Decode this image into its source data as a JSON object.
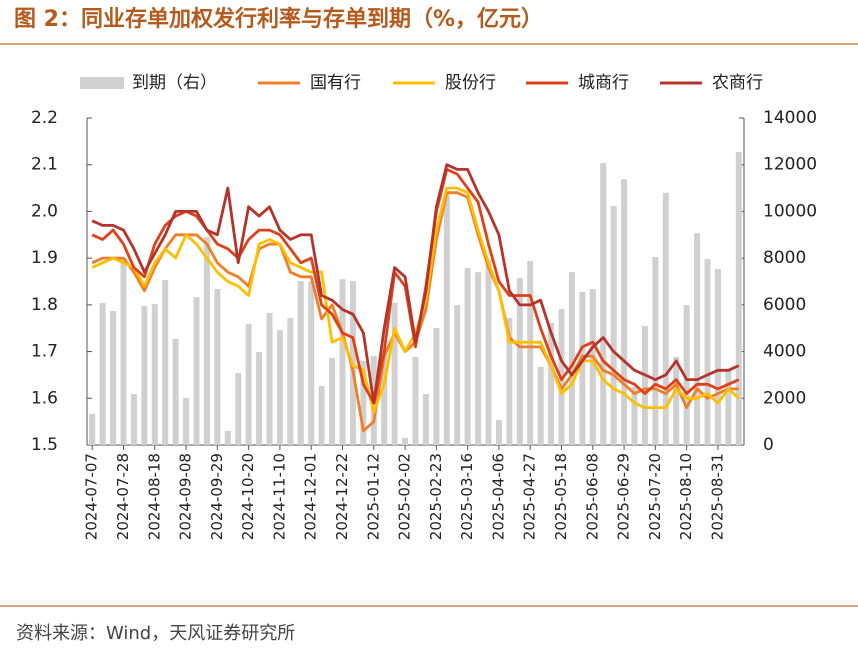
{
  "chart_data": {
    "type": "combo",
    "title": "图 2：同业存单加权发行利率与存单到期（%，亿元）",
    "source": "资料来源：Wind，天风证券研究所",
    "legend": "top",
    "categories": [
      "2024-07-07",
      null,
      null,
      "2024-07-28",
      null,
      null,
      "2024-08-18",
      null,
      null,
      "2024-09-08",
      null,
      null,
      "2024-09-29",
      null,
      null,
      "2024-10-20",
      null,
      null,
      "2024-11-10",
      null,
      null,
      "2024-12-01",
      null,
      null,
      "2024-12-22",
      null,
      null,
      "2025-01-12",
      null,
      null,
      "2025-02-02",
      null,
      null,
      "2025-02-23",
      null,
      null,
      "2025-03-16",
      null,
      null,
      "2025-04-06",
      null,
      null,
      "2025-04-27",
      null,
      null,
      "2025-05-18",
      null,
      null,
      "2025-06-08",
      null,
      null,
      "2025-06-29",
      null,
      null,
      "2025-07-20",
      null,
      null,
      "2025-08-10",
      null,
      null,
      "2025-08-31",
      null,
      null
    ],
    "ylim": [
      1.5,
      2.2
    ],
    "yticks": [
      1.5,
      1.6,
      1.7,
      1.8,
      1.9,
      {
        "value": 2.0,
        "label": "2.0"
      },
      2.1,
      2.2
    ],
    "y2lim": [
      0,
      14000
    ],
    "y2ticks": [
      0,
      2000,
      4000,
      6000,
      8000,
      10000,
      12000,
      14000
    ],
    "series": [
      {
        "name": "到期（右）",
        "type": "bar",
        "axis": "y2",
        "color": "#d0d0d0",
        "values": [
          1330,
          6080,
          5740,
          8000,
          2180,
          5950,
          6030,
          7060,
          4540,
          2010,
          6330,
          8900,
          6680,
          600,
          3080,
          5180,
          3980,
          5650,
          4920,
          5440,
          7020,
          7000,
          2530,
          3720,
          7100,
          7020,
          3600,
          3810,
          4020,
          6080,
          300,
          3770,
          2180,
          5010,
          10800,
          5990,
          7580,
          7400,
          7920,
          1070,
          5440,
          7150,
          7880,
          3340,
          5220,
          5820,
          7400,
          6550,
          6680,
          12070,
          10230,
          11380,
          2480,
          5090,
          8050,
          10800,
          3770,
          5990,
          9070,
          7960,
          7530,
          3210,
          12540
        ]
      },
      {
        "name": "国有行",
        "type": "line",
        "color": "#f07d28",
        "values": [
          1.89,
          1.9,
          1.9,
          1.9,
          1.87,
          1.83,
          1.88,
          1.92,
          1.95,
          1.95,
          1.95,
          1.93,
          1.89,
          1.87,
          1.86,
          1.84,
          1.92,
          1.93,
          1.93,
          1.87,
          1.86,
          1.86,
          1.77,
          1.8,
          1.74,
          1.66,
          1.53,
          1.55,
          1.69,
          1.74,
          1.7,
          1.72,
          1.79,
          1.94,
          2.04,
          2.04,
          2.03,
          1.95,
          1.88,
          1.83,
          1.73,
          1.71,
          1.71,
          1.71,
          1.67,
          1.62,
          1.65,
          1.69,
          1.69,
          1.66,
          1.65,
          1.63,
          1.61,
          1.62,
          1.62,
          1.61,
          1.63,
          1.58,
          1.62,
          1.6,
          1.61,
          1.62,
          1.62
        ]
      },
      {
        "name": "股份行",
        "type": "line",
        "color": "#ffbf00",
        "values": [
          1.88,
          1.89,
          1.9,
          1.89,
          1.88,
          1.84,
          1.89,
          1.92,
          1.9,
          1.95,
          1.93,
          1.9,
          1.87,
          1.85,
          1.84,
          1.82,
          1.93,
          1.94,
          1.93,
          1.89,
          1.88,
          1.87,
          1.87,
          1.72,
          1.73,
          1.67,
          1.66,
          1.57,
          1.63,
          1.75,
          1.7,
          1.74,
          1.81,
          1.96,
          2.05,
          2.05,
          2.04,
          1.96,
          1.89,
          1.83,
          1.72,
          1.72,
          1.72,
          1.72,
          1.67,
          1.61,
          1.63,
          1.68,
          1.68,
          1.64,
          1.62,
          1.61,
          1.59,
          1.58,
          1.58,
          1.58,
          1.62,
          1.6,
          1.6,
          1.61,
          1.59,
          1.62,
          1.6
        ]
      },
      {
        "name": "城商行",
        "type": "line",
        "color": "#de4019",
        "values": [
          1.95,
          1.94,
          1.96,
          1.93,
          1.88,
          1.86,
          1.93,
          1.97,
          1.99,
          2.0,
          1.99,
          1.96,
          1.93,
          1.92,
          1.9,
          1.94,
          1.96,
          1.96,
          1.95,
          1.92,
          1.89,
          1.9,
          1.8,
          1.78,
          1.74,
          1.73,
          1.63,
          1.59,
          1.7,
          1.87,
          1.84,
          1.71,
          1.84,
          2.0,
          2.09,
          2.08,
          2.05,
          2.02,
          1.93,
          1.85,
          1.82,
          1.82,
          1.82,
          1.75,
          1.69,
          1.64,
          1.67,
          1.71,
          1.72,
          1.68,
          1.66,
          1.64,
          1.63,
          1.61,
          1.63,
          1.62,
          1.64,
          1.61,
          1.63,
          1.63,
          1.62,
          1.63,
          1.64
        ]
      },
      {
        "name": "农商行",
        "type": "line",
        "color": "#b5332a",
        "values": [
          1.98,
          1.97,
          1.97,
          1.96,
          1.92,
          1.87,
          1.91,
          1.95,
          2.0,
          2.0,
          2.0,
          1.96,
          1.95,
          2.05,
          1.89,
          2.01,
          1.99,
          2.01,
          1.96,
          1.94,
          1.95,
          1.95,
          1.82,
          1.81,
          1.79,
          1.78,
          1.74,
          1.59,
          1.75,
          1.88,
          1.86,
          1.72,
          1.83,
          2.01,
          2.1,
          2.09,
          2.09,
          2.04,
          2.0,
          1.95,
          1.83,
          1.8,
          1.8,
          1.81,
          1.74,
          1.68,
          1.65,
          1.68,
          1.71,
          1.73,
          1.7,
          1.68,
          1.66,
          1.65,
          1.64,
          1.65,
          1.68,
          1.64,
          1.64,
          1.65,
          1.66,
          1.66,
          1.67
        ]
      }
    ]
  }
}
